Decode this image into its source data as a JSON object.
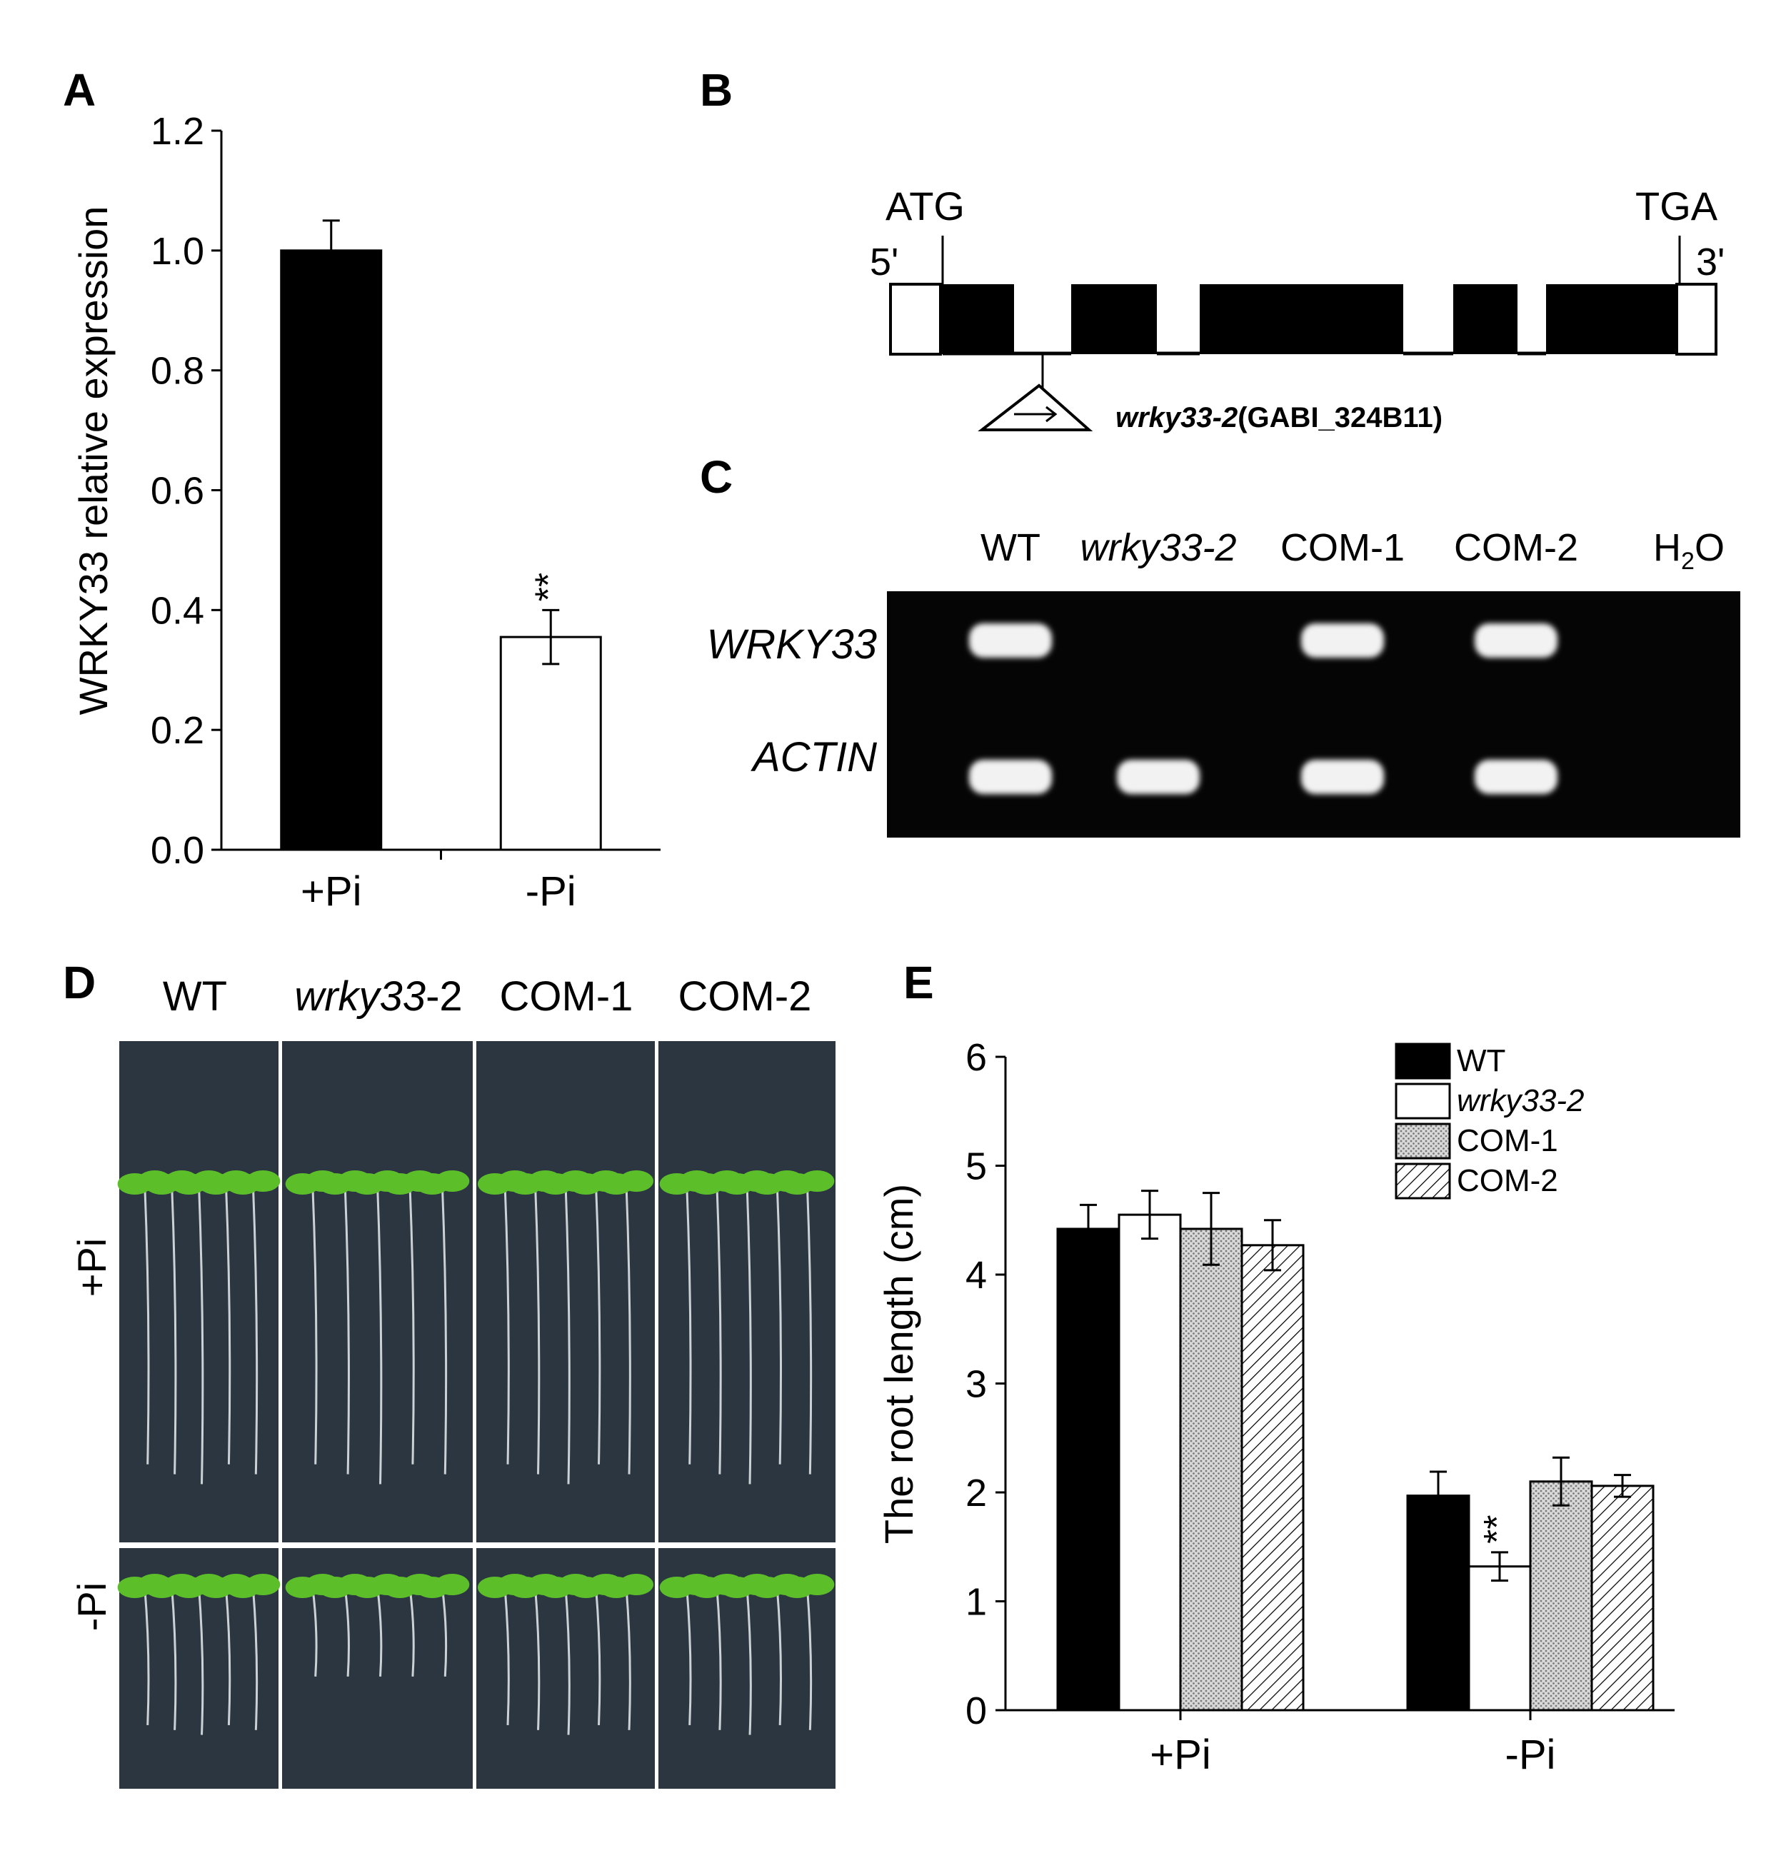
{
  "panel_labels": {
    "a": "A",
    "b": "B",
    "c": "C",
    "d": "D",
    "e": "E"
  },
  "colors": {
    "bar_black": "#000000",
    "bar_white": "#ffffff",
    "bar_grey": "#d8d8d8",
    "gel_background": "#050505",
    "gel_band": "#f2f2f2",
    "plate_background": "#2b3640",
    "seedling_leaf": "#5cbf2a",
    "root": "#e8ecef"
  },
  "chart_data": [
    {
      "panel": "A",
      "type": "bar",
      "categories": [
        "+Pi",
        "-Pi"
      ],
      "values": [
        1.0,
        0.355
      ],
      "errors": [
        0.05,
        0.045
      ],
      "fills": [
        "black",
        "white"
      ],
      "significance": [
        "",
        "**"
      ],
      "ylabel": "WRKY33 relative expression",
      "ylim": [
        0,
        1.2
      ],
      "yticks": [
        "0.0",
        "0.2",
        "0.4",
        "0.6",
        "0.8",
        "1.0",
        "1.2"
      ]
    },
    {
      "panel": "E",
      "type": "bar",
      "categories": [
        "+Pi",
        "-Pi"
      ],
      "series": [
        {
          "name": "WT",
          "fill": "black",
          "values": [
            4.42,
            1.97
          ],
          "errors": [
            0.22,
            0.22
          ]
        },
        {
          "name": "wrky33-2",
          "fill": "white",
          "values": [
            4.55,
            1.32
          ],
          "errors": [
            0.22,
            0.13
          ]
        },
        {
          "name": "COM-1",
          "fill": "dots",
          "values": [
            4.42,
            2.1
          ],
          "errors": [
            0.33,
            0.22
          ]
        },
        {
          "name": "COM-2",
          "fill": "hatch",
          "values": [
            4.27,
            2.06
          ],
          "errors": [
            0.23,
            0.1
          ]
        }
      ],
      "significance": {
        "-Pi": {
          "wrky33-2": "**"
        }
      },
      "ylabel": "The root length (cm)",
      "ylim": [
        0,
        6
      ],
      "yticks": [
        "0",
        "1",
        "2",
        "3",
        "4",
        "5",
        "6"
      ],
      "legend": "top-right"
    }
  ],
  "gene_model": {
    "start_codon": "ATG",
    "stop_codon": "TGA",
    "five_prime": "5'",
    "three_prime": "3'",
    "insertion_name": "wrky33-2",
    "insertion_line": "(GABI_324B11)"
  },
  "gel": {
    "lanes": [
      "WT",
      "wrky33-2",
      "COM-1",
      "COM-2",
      "H2O"
    ],
    "h2o_main": "H",
    "h2o_sub": "2",
    "h2o_tail": "O",
    "rows": [
      {
        "label": "WRKY33",
        "bands": [
          true,
          false,
          true,
          true,
          false
        ]
      },
      {
        "label": "ACTIN",
        "bands": [
          true,
          true,
          true,
          true,
          false
        ]
      }
    ]
  },
  "plate_photo": {
    "columns": [
      "WT",
      "wrky33-2",
      "COM-1",
      "COM-2"
    ],
    "col_wt": "WT",
    "col_mut_base": "wrky33",
    "col_mut_suffix": "-2",
    "col_com1": "COM-1",
    "col_com2": "COM-2",
    "row_plus": "+Pi",
    "row_minus": "-Pi"
  },
  "legend_e": {
    "wt": "WT",
    "mut_base": "wrky33",
    "mut_suffix": "-2",
    "com1": "COM-1",
    "com2": "COM-2"
  }
}
